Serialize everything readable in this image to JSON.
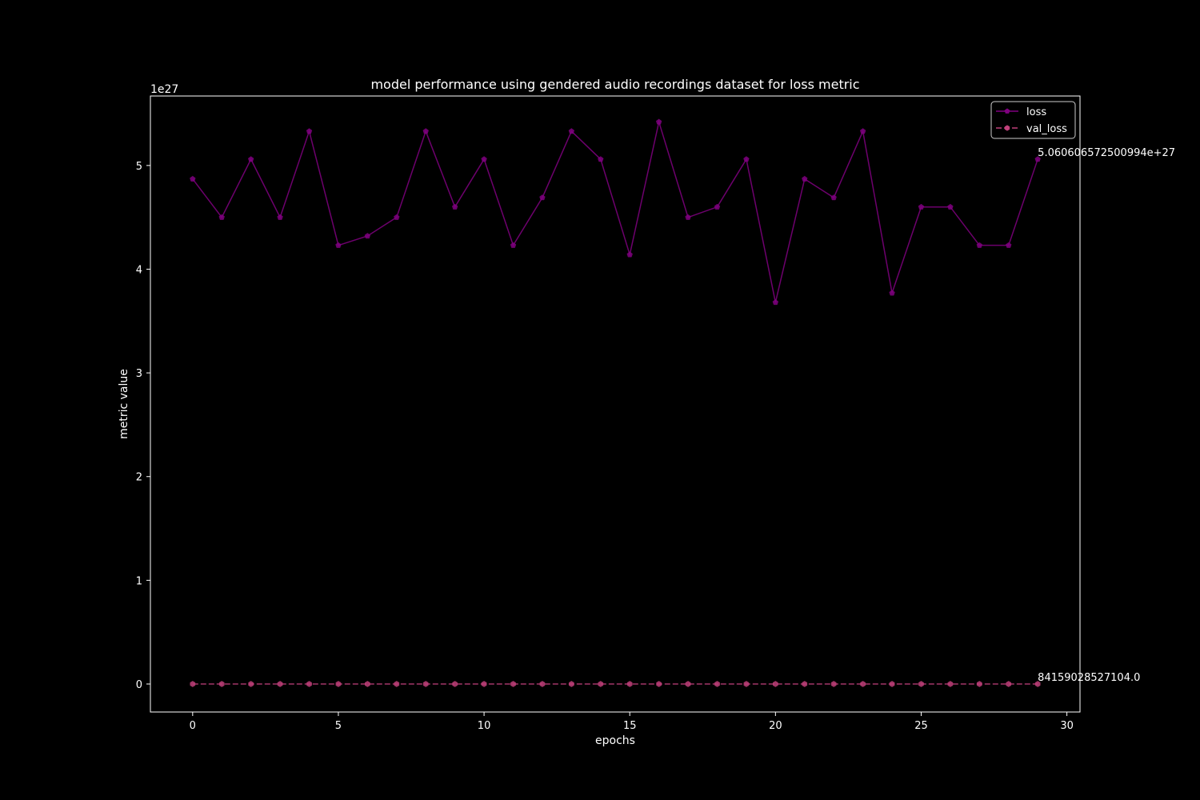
{
  "chart_data": {
    "type": "line",
    "title": "model performance using gendered audio recordings dataset for loss metric",
    "xlabel": "epochs",
    "ylabel": "metric value",
    "y_offset_label": "1e27",
    "xlim": [
      -1.45,
      30.45
    ],
    "ylim": [
      -0.27,
      5.67
    ],
    "y_scale_note": "y values in units of 1e27",
    "xticks": [
      0,
      5,
      10,
      15,
      20,
      25,
      30
    ],
    "yticks": [
      0,
      1,
      2,
      3,
      4,
      5
    ],
    "legend_position": "top-right",
    "grid": false,
    "x": [
      0,
      1,
      2,
      3,
      4,
      5,
      6,
      7,
      8,
      9,
      10,
      11,
      12,
      13,
      14,
      15,
      16,
      17,
      18,
      19,
      20,
      21,
      22,
      23,
      24,
      25,
      26,
      27,
      28,
      29
    ],
    "series": [
      {
        "name": "loss",
        "color": "#800080",
        "style": "solid",
        "marker": "pentagon",
        "values": [
          4.87,
          4.5,
          5.06,
          4.5,
          5.33,
          4.23,
          4.32,
          4.5,
          5.33,
          4.6,
          5.06,
          4.23,
          4.69,
          5.33,
          5.06,
          4.14,
          5.42,
          4.5,
          4.6,
          5.06,
          3.68,
          4.87,
          4.69,
          5.33,
          3.77,
          4.6,
          4.6,
          4.23,
          4.23,
          5.06
        ]
      },
      {
        "name": "val_loss",
        "color": "#c0407a",
        "style": "dashed",
        "marker": "hexagon",
        "values": [
          0,
          0,
          0,
          0,
          0,
          0,
          0,
          0,
          0,
          0,
          0,
          0,
          0,
          0,
          0,
          0,
          0,
          0,
          0,
          0,
          0,
          0,
          0,
          0,
          0,
          0,
          0,
          0,
          0,
          0
        ]
      }
    ],
    "annotations": [
      {
        "series": "loss",
        "text": "5.060606572500994e+27"
      },
      {
        "series": "val_loss",
        "text": "84159028527104.0"
      }
    ]
  }
}
